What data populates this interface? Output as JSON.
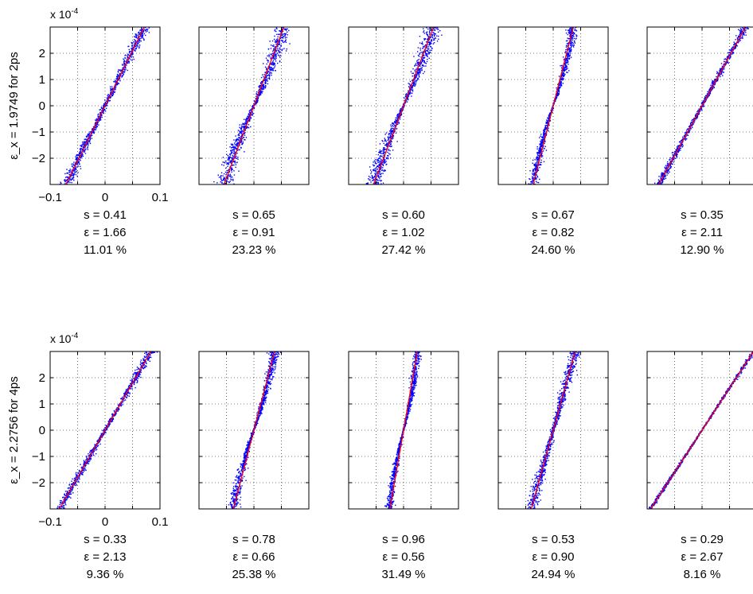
{
  "figure": {
    "background": "#ffffff",
    "frame_color": "#000000",
    "scatter_color": "#0000ff",
    "fit_color": "#ff0000"
  },
  "chart_data": [
    {
      "type": "scatter",
      "row_ylabel": "ε_x = 1.9749 for 2ps",
      "exponent_label": "x 10^-4",
      "xlim": [
        -0.1,
        0.1
      ],
      "ylim": [
        -3,
        3
      ],
      "y_unit_scale": 0.0001,
      "xticks": [
        "−0.1",
        "0",
        "0.1"
      ],
      "yticks": [
        "2",
        "1",
        "0",
        "−1",
        "−2"
      ],
      "grid": true,
      "panels": [
        {
          "stats": [
            "s = 0.41",
            "ε = 1.66",
            "11.01 %"
          ],
          "fit_slope": 42,
          "spread": 0.45,
          "spread_mode": "linear",
          "waist": 0.1
        },
        {
          "stats": [
            "s = 0.65",
            "ε = 0.91",
            "23.23 %"
          ],
          "fit_slope": 55,
          "spread": 0.9,
          "spread_mode": "s",
          "waist": 0.1
        },
        {
          "stats": [
            "s = 0.60",
            "ε = 1.02",
            "27.42 %"
          ],
          "fit_slope": 55,
          "spread": 0.85,
          "spread_mode": "s",
          "waist": 0.1
        },
        {
          "stats": [
            "s = 0.67",
            "ε = 0.82",
            "24.60 %"
          ],
          "fit_slope": 82,
          "spread": 0.45,
          "spread_mode": "s",
          "waist": 0.1
        },
        {
          "stats": [
            "s = 0.35",
            "ε = 2.11",
            "12.90 %"
          ],
          "fit_slope": 38,
          "spread": 0.3,
          "spread_mode": "linear",
          "waist": 0.1
        }
      ]
    },
    {
      "type": "scatter",
      "row_ylabel": "ε_x = 2.2756 for 4ps",
      "exponent_label": "x 10^-4",
      "xlim": [
        -0.1,
        0.1
      ],
      "ylim": [
        -3,
        3
      ],
      "y_unit_scale": 0.0001,
      "xticks": [
        "−0.1",
        "0",
        "0.1"
      ],
      "yticks": [
        "2",
        "1",
        "0",
        "−1",
        "−2"
      ],
      "grid": true,
      "panels": [
        {
          "stats": [
            "s = 0.33",
            "ε = 2.13",
            "9.36 %"
          ],
          "fit_slope": 36,
          "spread": 0.35,
          "spread_mode": "linear",
          "waist": 0.1
        },
        {
          "stats": [
            "s = 0.78",
            "ε = 0.66",
            "25.38 %"
          ],
          "fit_slope": 80,
          "spread": 0.5,
          "spread_mode": "s",
          "waist": 0.1
        },
        {
          "stats": [
            "s = 0.96",
            "ε = 0.56",
            "31.49 %"
          ],
          "fit_slope": 120,
          "spread": 0.4,
          "spread_mode": "s",
          "waist": 0.1
        },
        {
          "stats": [
            "s = 0.53",
            "ε = 0.90",
            "24.94 %"
          ],
          "fit_slope": 75,
          "spread": 0.45,
          "spread_mode": "linear",
          "waist": 0.1
        },
        {
          "stats": [
            "s = 0.29",
            "ε = 2.67",
            "8.16 %"
          ],
          "fit_slope": 32,
          "spread": 0.15,
          "spread_mode": "linear",
          "waist": 0.1
        }
      ]
    }
  ]
}
